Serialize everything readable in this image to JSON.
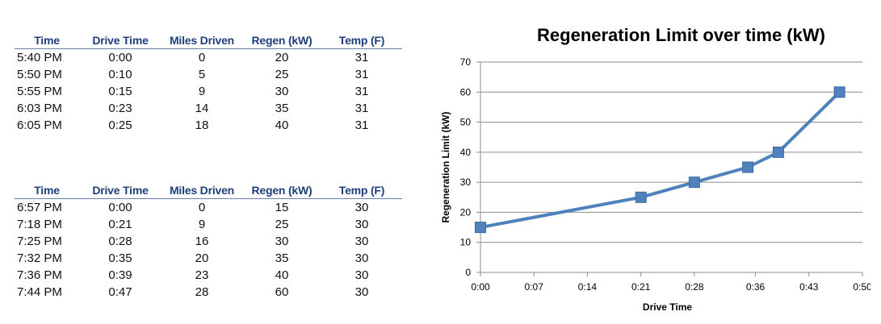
{
  "tables": [
    {
      "headers": [
        "Time",
        "Drive Time",
        "Miles Driven",
        "Regen (kW)",
        "Temp (F)"
      ],
      "rows": [
        [
          "5:40 PM",
          "0:00",
          "0",
          "20",
          "31"
        ],
        [
          "5:50 PM",
          "0:10",
          "5",
          "25",
          "31"
        ],
        [
          "5:55 PM",
          "0:15",
          "9",
          "30",
          "31"
        ],
        [
          "6:03 PM",
          "0:23",
          "14",
          "35",
          "31"
        ],
        [
          "6:05 PM",
          "0:25",
          "18",
          "40",
          "31"
        ]
      ]
    },
    {
      "headers": [
        "Time",
        "Drive Time",
        "Miles Driven",
        "Regen (kW)",
        "Temp (F)"
      ],
      "rows": [
        [
          "6:57 PM",
          "0:00",
          "0",
          "15",
          "30"
        ],
        [
          "7:18 PM",
          "0:21",
          "9",
          "25",
          "30"
        ],
        [
          "7:25 PM",
          "0:28",
          "16",
          "30",
          "30"
        ],
        [
          "7:32 PM",
          "0:35",
          "20",
          "35",
          "30"
        ],
        [
          "7:36 PM",
          "0:39",
          "23",
          "40",
          "30"
        ],
        [
          "7:44 PM",
          "0:47",
          "28",
          "60",
          "30"
        ]
      ]
    }
  ],
  "chart_data": {
    "type": "line",
    "title": "Regeneration Limit over time (kW)",
    "xlabel": "Drive Time",
    "ylabel": "Regeneration Limit (kW)",
    "x": [
      "0:00",
      "0:21",
      "0:28",
      "0:35",
      "0:39",
      "0:47"
    ],
    "series": [
      {
        "values": [
          15,
          25,
          30,
          35,
          40,
          60
        ]
      }
    ],
    "x_ticks": [
      "0:00",
      "0:07",
      "0:14",
      "0:21",
      "0:28",
      "0:36",
      "0:43",
      "0:50"
    ],
    "xlim": [
      "0:00",
      "0:50"
    ],
    "y_ticks": [
      0,
      10,
      20,
      30,
      40,
      50,
      60,
      70
    ],
    "ylim": [
      0,
      70
    ],
    "grid": "horizontal",
    "legend": "none",
    "colors": {
      "series": "#4f81bd",
      "marker_edge": "#3a6aa3",
      "grid": "#8c8c8c",
      "axis": "#8c8c8c"
    }
  }
}
